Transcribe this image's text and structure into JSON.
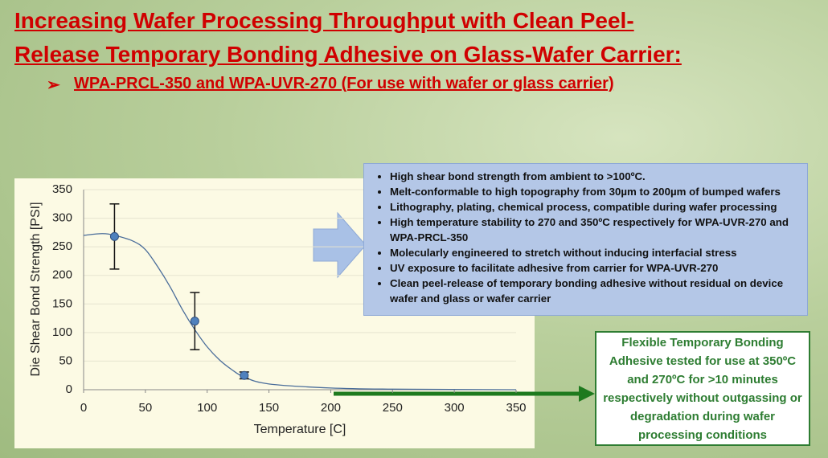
{
  "title_lines": [
    "Increasing Wafer Processing Throughput with Clean Peel-",
    "Release Temporary Bonding Adhesive on Glass-Wafer Carrier:"
  ],
  "subtitle": "WPA-PRCL-350 and WPA-UVR-270 (For use with wafer or glass carrier)",
  "bullets": [
    "High shear bond strength from ambient to >100ºC.",
    "Melt-conformable to high topography from 30µm to 200µm of bumped wafers",
    "Lithography, plating, chemical process, compatible during wafer processing",
    "High temperature stability to 270 and 350ºC respectively for WPA-UVR-270 and WPA-PRCL-350",
    "Molecularly engineered to stretch without inducing interfacial stress",
    "UV exposure to facilitate adhesive from carrier for WPA-UVR-270",
    "Clean peel-release of temporary bonding adhesive without residual on device wafer and glass or wafer carrier"
  ],
  "callout": "Flexible Temporary Bonding Adhesive tested for use at 350ºC and 270ºC for >10 minutes respectively without outgassing or degradation during wafer processing conditions",
  "chart_data": {
    "type": "scatter",
    "x_label": "Temperature [C]",
    "y_label": "Die Shear Bond Strength [PSI]",
    "xlim": [
      0,
      350
    ],
    "xticks": [
      0,
      50,
      100,
      150,
      200,
      250,
      300,
      350
    ],
    "ylim": [
      0,
      350
    ],
    "yticks": [
      0,
      50,
      100,
      150,
      200,
      250,
      300,
      350
    ],
    "points": {
      "color": "#4f81bd",
      "x": [
        25,
        90,
        130
      ],
      "values": [
        268,
        120,
        25
      ],
      "errors": [
        57,
        50,
        6
      ]
    },
    "fit": {
      "color": "#4a6d9a",
      "x": [
        0,
        15,
        25,
        40,
        50,
        60,
        70,
        80,
        90,
        100,
        110,
        120,
        130,
        150,
        200,
        250,
        350
      ],
      "values": [
        270,
        273,
        270,
        260,
        245,
        215,
        180,
        140,
        105,
        75,
        52,
        35,
        22,
        10,
        3,
        1,
        0
      ]
    }
  }
}
